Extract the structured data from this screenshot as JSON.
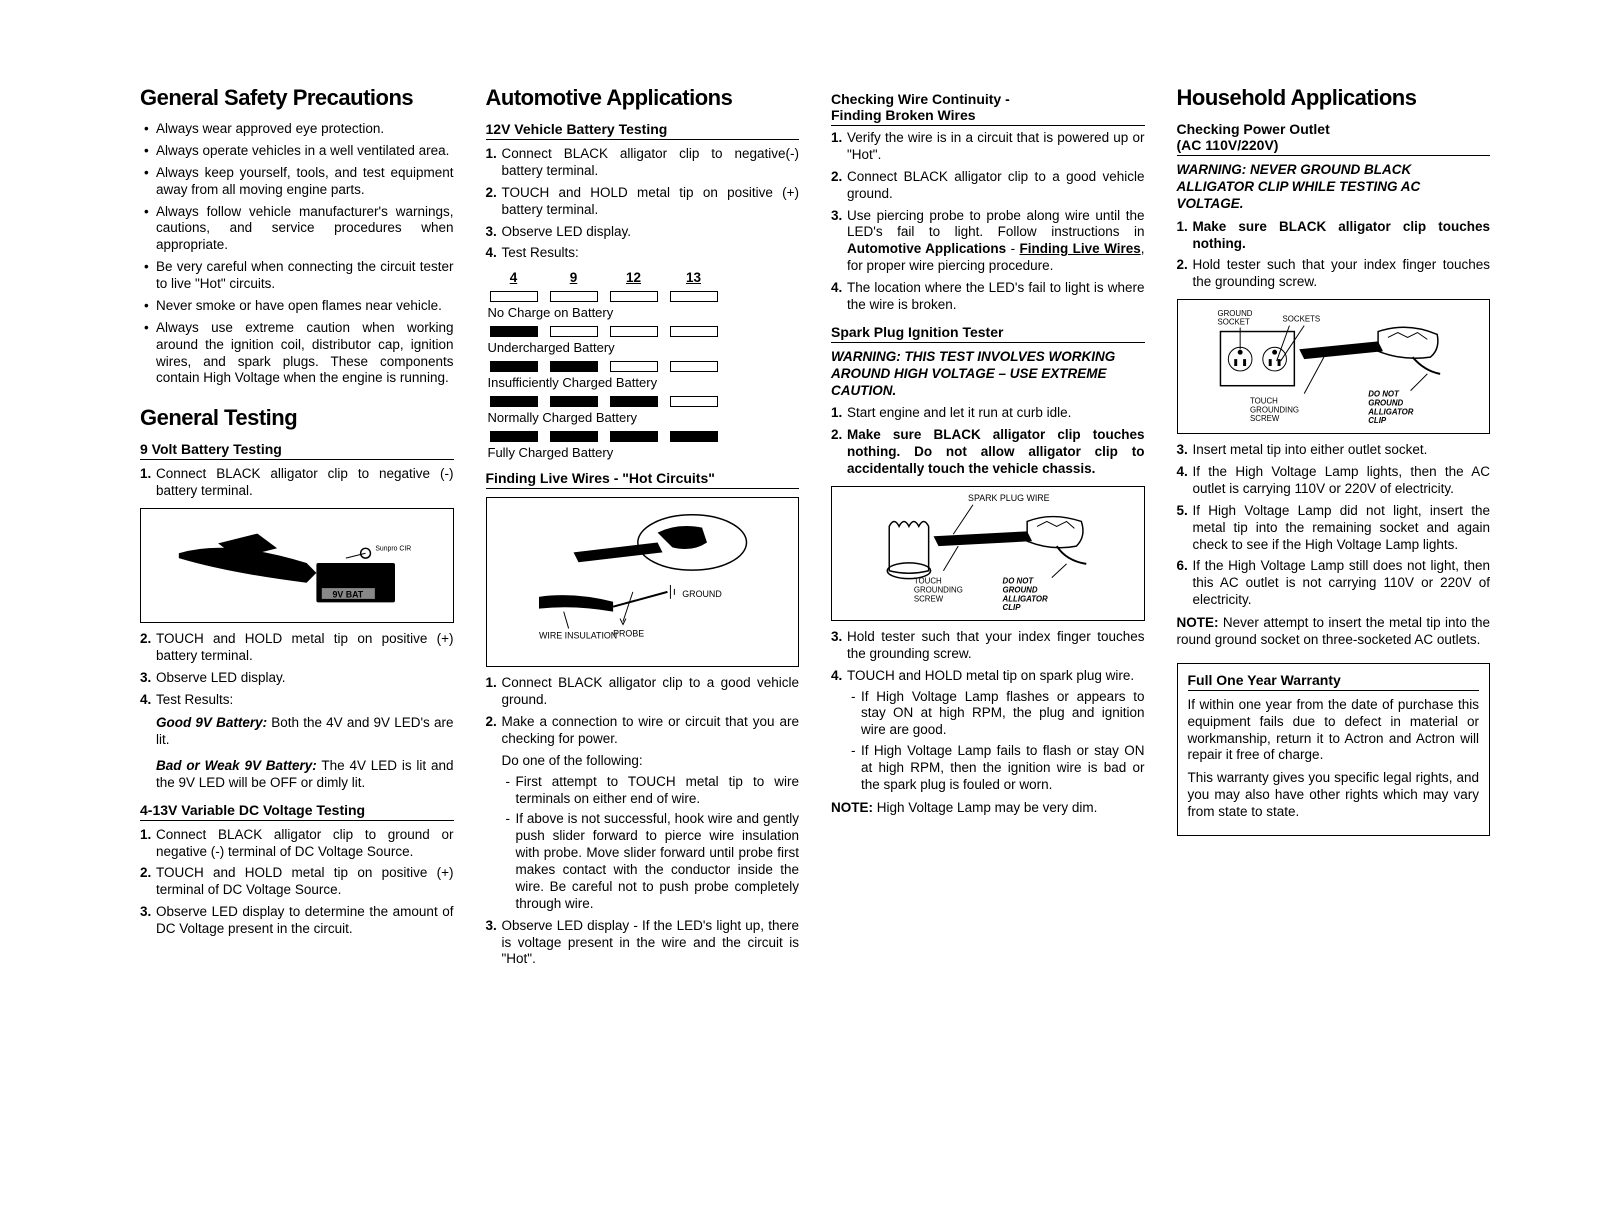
{
  "col1": {
    "h1_safety": "General Safety Precautions",
    "safety_bullets": [
      "Always wear approved eye protection.",
      "Always operate vehicles in a well ventilated area.",
      "Always keep yourself, tools, and test equipment away from all moving engine parts.",
      "Always follow vehicle manufacturer's warnings, cautions, and service procedures when appropriate.",
      "Be very careful when connecting the circuit tester to live \"Hot\" circuits.",
      "Never smoke or have open flames near vehicle.",
      "Always use extreme caution when working around the ignition coil, distributor cap, ignition wires, and spark plugs. These components contain High Voltage when the engine is running."
    ],
    "h1_testing": "General Testing",
    "h2_9v": "9 Volt Battery Testing",
    "nine_v_steps": [
      "Connect BLACK alligator clip to negative (-) battery terminal.",
      "TOUCH and HOLD metal tip on positive (+) battery terminal.",
      "Observe LED display.",
      "Test Results:"
    ],
    "good_9v": "Good 9V Battery:",
    "good_9v_text": " Both the 4V and 9V LED's are lit.",
    "bad_9v": "Bad or Weak 9V Battery:",
    "bad_9v_text": " The 4V LED is lit and the 9V LED will be OFF or dimly lit.",
    "h2_413v": "4-13V Variable DC Voltage Testing",
    "v413_steps": [
      "Connect BLACK alligator clip to ground or negative (-) terminal of DC Voltage Source.",
      "TOUCH and HOLD metal tip on positive (+) terminal of DC Voltage Source.",
      "Observe LED display to determine the amount of DC Voltage present in the circuit."
    ]
  },
  "col2": {
    "h1_auto": "Automotive Applications",
    "h2_12v": "12V Vehicle Battery Testing",
    "v12_steps": [
      "Connect BLACK alligator clip to negative(-) battery terminal.",
      "TOUCH and HOLD metal tip on positive (+) battery terminal.",
      "Observe LED display.",
      "Test Results:"
    ],
    "table": {
      "headers": [
        "4",
        "9",
        "12",
        "13"
      ],
      "rows": [
        {
          "fills": [
            false,
            false,
            false,
            false
          ],
          "label": "No Charge on Battery"
        },
        {
          "fills": [
            true,
            false,
            false,
            false
          ],
          "label": "Undercharged Battery"
        },
        {
          "fills": [
            true,
            true,
            false,
            false
          ],
          "label": "Insufficiently Charged Battery"
        },
        {
          "fills": [
            true,
            true,
            true,
            false
          ],
          "label": "Normally Charged Battery"
        },
        {
          "fills": [
            true,
            true,
            true,
            true
          ],
          "label": "Fully Charged Battery"
        }
      ]
    },
    "h2_live": "Finding Live Wires - \"Hot Circuits\"",
    "live_steps_1": "Connect BLACK alligator clip to a good vehicle ground.",
    "live_steps_2": "Make a connection to wire or circuit that you are checking for power.",
    "live_do_one": "Do one of the following:",
    "live_sub1": "First attempt to TOUCH metal tip to wire terminals on either end of wire.",
    "live_sub2": "If above is not successful, hook wire and gently push slider forward to pierce wire insulation with probe. Move slider forward until probe first makes contact with the conductor inside the wire. Be careful not to push probe completely through wire.",
    "live_steps_3": "Observe LED display - If the LED's light up, there is voltage present in the wire and the circuit is \"Hot\"."
  },
  "col3": {
    "h3_continuity1": "Checking Wire Continuity -",
    "h3_continuity2": "Finding Broken Wires",
    "cont_steps": [
      "Verify the wire is in a circuit that is powered up or \"Hot\".",
      "Connect BLACK alligator clip to a good vehicle ground.",
      "Use piercing probe to probe along wire until the LED's fail to light. Follow instructions in Automotive Applications - Finding Live Wires, for proper wire piercing procedure.",
      "The location where the LED's fail to light is where the wire is broken."
    ],
    "h2_spark": "Spark Plug Ignition Tester",
    "spark_warn": "WARNING: THIS TEST INVOLVES WORKING AROUND HIGH VOLTAGE – USE EXTREME CAUTION.",
    "spark_1": "Start engine and let it run at curb idle.",
    "spark_2": "Make sure BLACK alligator clip touches nothing. Do not allow alligator clip to accidentally touch the vehicle chassis.",
    "spark_3": "Hold tester such that your index finger touches the grounding screw.",
    "spark_4": "TOUCH and HOLD metal tip on spark plug wire.",
    "spark_sub1": "If High Voltage Lamp flashes or appears to stay ON at high RPM, the plug and ignition wire are good.",
    "spark_sub2": "If High Voltage Lamp fails to flash or stay ON at high RPM, then the ignition wire is bad or the spark plug is fouled or worn.",
    "spark_note": "NOTE:",
    "spark_note_text": " High Voltage Lamp may be very dim."
  },
  "col4": {
    "h1_house": "Household Applications",
    "h3_outlet1": "Checking Power Outlet",
    "h3_outlet2": "(AC 110V/220V)",
    "outlet_warn": "WARNING: NEVER GROUND BLACK ALLIGATOR CLIP WHILE TESTING AC VOLTAGE.",
    "outlet_1": "Make sure BLACK alligator clip touches nothing.",
    "outlet_2": "Hold tester such that your index finger touches the grounding screw.",
    "outlet_3": "Insert metal tip into either outlet socket.",
    "outlet_4": "If the High Voltage Lamp lights, then the AC outlet is carrying 110V or 220V of electricity.",
    "outlet_5": "If High Voltage Lamp did not light, insert the metal tip into the remaining socket and again check to see if the High Voltage Lamp lights.",
    "outlet_6": "If the High Voltage Lamp still does not light, then this AC outlet is not carrying 110V or 220V of electricity.",
    "outlet_note": "NOTE:",
    "outlet_note_text": " Never attempt to insert the metal tip into the round ground socket on three-socketed AC outlets.",
    "h2_warranty": "Full One Year Warranty",
    "warranty_p1": "If within one year from the date of purchase this equipment fails due to defect in material or workmanship, return it to Actron and Actron will repair it free of charge.",
    "warranty_p2": "This warranty gives you specific legal rights, and you may also have other rights which may vary from state to state."
  },
  "fig_labels": {
    "fig2_wire": "WIRE INSULATION",
    "fig2_ground": "GROUND",
    "fig2_probe": "PROBE",
    "fig3_spark": "SPARK PLUG WIRE",
    "fig3_touch": "TOUCH GROUNDING SCREW",
    "fig3_donot": "DO NOT GROUND ALLIGATOR CLIP",
    "fig4_gsocket": "GROUND SOCKET",
    "fig4_sockets": "SOCKETS",
    "fig4_touch": "TOUCH GROUNDING SCREW",
    "fig4_donot": "DO NOT GROUND ALLIGATOR CLIP"
  }
}
